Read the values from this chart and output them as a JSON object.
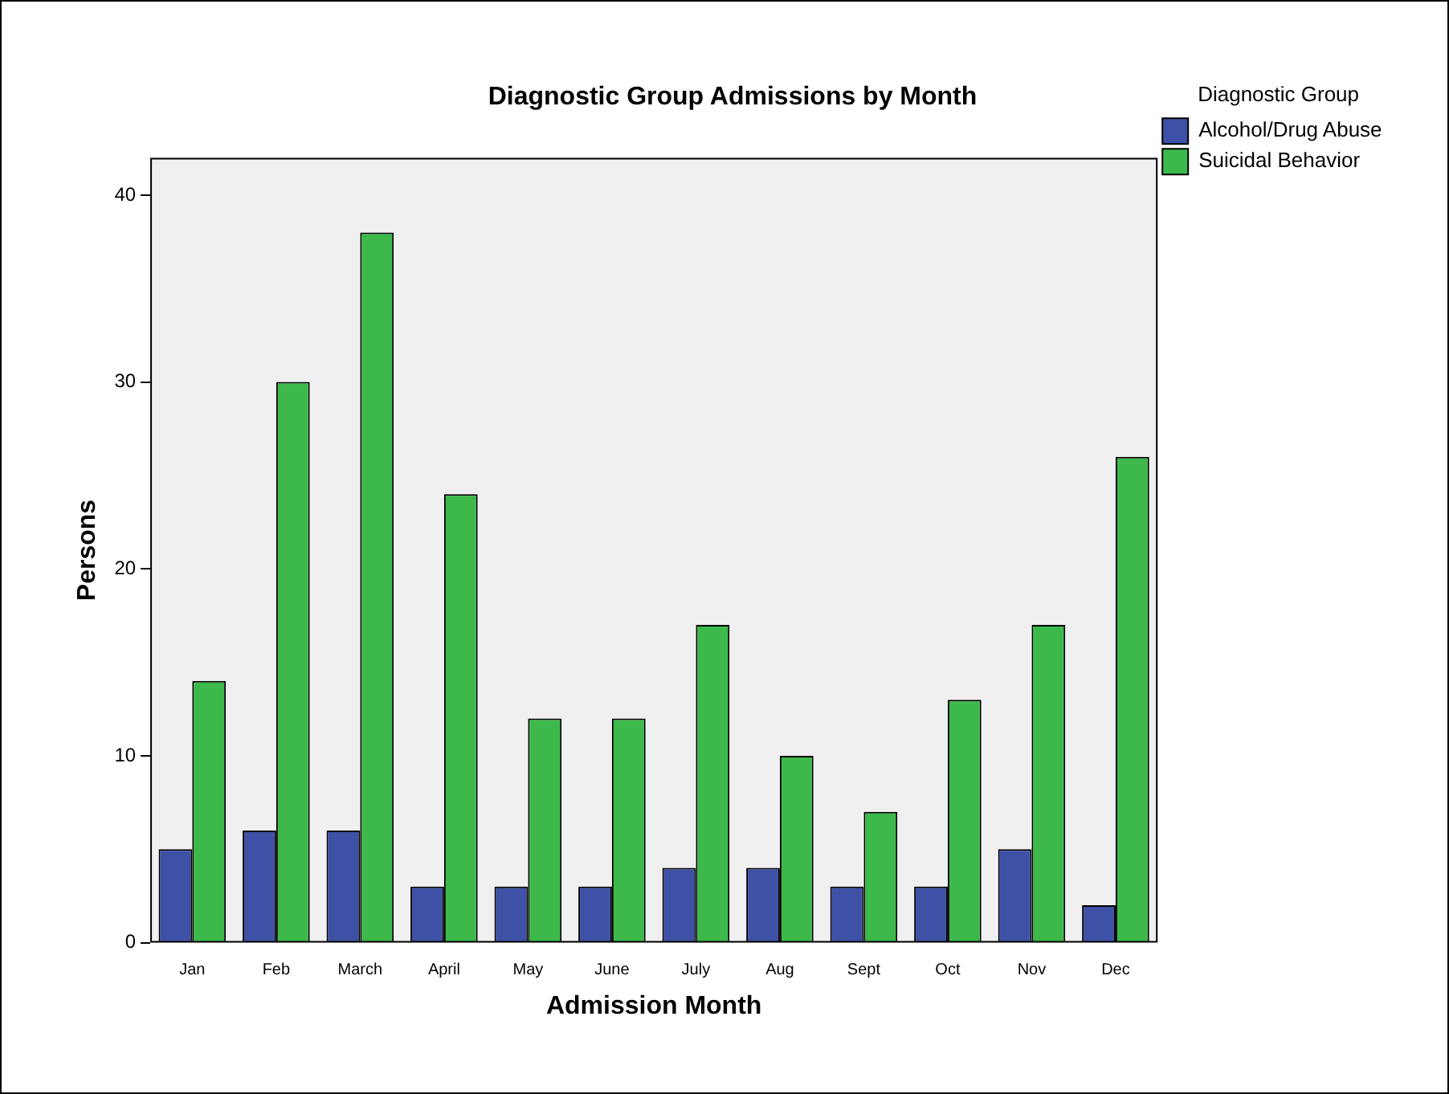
{
  "chart_data": {
    "type": "bar",
    "title": "Diagnostic Group Admissions by Month",
    "xlabel": "Admission Month",
    "ylabel": "Persons",
    "legend_title": "Diagnostic Group",
    "legend": "top right",
    "categories": [
      "Jan",
      "Feb",
      "March",
      "April",
      "May",
      "June",
      "July",
      "Aug",
      "Sept",
      "Oct",
      "Nov",
      "Dec"
    ],
    "series": [
      {
        "name": "Alcohol/Drug Abuse",
        "color": "#3f51a6",
        "values": [
          5,
          6,
          6,
          3,
          3,
          3,
          4,
          4,
          3,
          3,
          5,
          2
        ]
      },
      {
        "name": "Suicidal Behavior",
        "color": "#3cb94a",
        "values": [
          14,
          30,
          38,
          24,
          12,
          12,
          17,
          10,
          7,
          13,
          17,
          26
        ]
      }
    ],
    "ylim": [
      0,
      42
    ],
    "yticks": [
      0,
      10,
      20,
      30,
      40
    ]
  }
}
